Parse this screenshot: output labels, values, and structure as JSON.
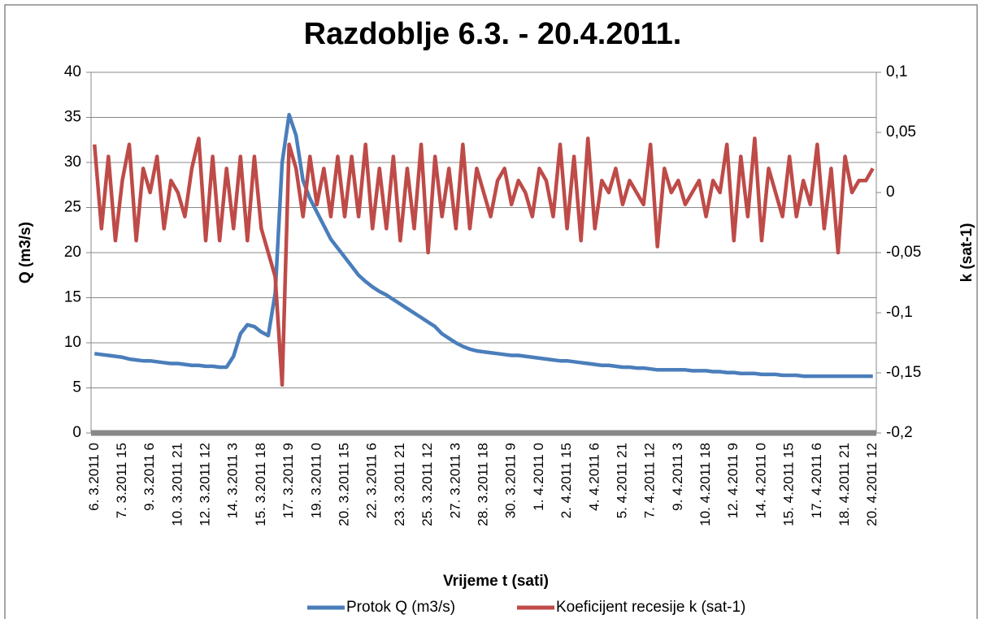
{
  "chart_data": {
    "type": "line",
    "title": "Razdoblje 6.3. - 20.4.2011.",
    "xlabel": "Vrijeme t (sati)",
    "ylabel": "Q (m3/s)",
    "y2label": "k (sat-1)",
    "categories": [
      "6. 3.2011 0",
      null,
      null,
      null,
      "7. 3.2011 15",
      null,
      null,
      null,
      "9. 3.2011 6",
      null,
      null,
      null,
      "10. 3.2011 21",
      null,
      null,
      null,
      "12. 3.2011 12",
      null,
      null,
      null,
      "14. 3.2011 3",
      null,
      null,
      null,
      "15. 3.2011 18",
      null,
      null,
      null,
      "17. 3.2011 9",
      null,
      null,
      null,
      "19. 3.2011 0",
      null,
      null,
      null,
      "20. 3.2011 15",
      null,
      null,
      null,
      "22. 3.2011 6",
      null,
      null,
      null,
      "23. 3.2011 21",
      null,
      null,
      null,
      "25. 3.2011 12",
      null,
      null,
      null,
      "27. 3.2011 3",
      null,
      null,
      null,
      "28. 3.2011 18",
      null,
      null,
      null,
      "30. 3.2011 9",
      null,
      null,
      null,
      "1. 4.2011 0",
      null,
      null,
      null,
      "2. 4.2011 15",
      null,
      null,
      null,
      "4. 4.2011 6",
      null,
      null,
      null,
      "5. 4.2011 21",
      null,
      null,
      null,
      "7. 4.2011 12",
      null,
      null,
      null,
      "9. 4.2011 3",
      null,
      null,
      null,
      "10. 4.2011 18",
      null,
      null,
      null,
      "12. 4.2011 9",
      null,
      null,
      null,
      "14. 4.2011 0",
      null,
      null,
      null,
      "15. 4.2011 15",
      null,
      null,
      null,
      "17. 4.2011 6",
      null,
      null,
      null,
      "18. 4.2011 21",
      null,
      null,
      null,
      "20. 4.2011 12"
    ],
    "series": [
      {
        "name": "Protok Q (m3/s)",
        "color": "#4a7ebb",
        "values": [
          8.8,
          8.7,
          8.6,
          8.5,
          8.4,
          8.2,
          8.1,
          8.0,
          8.0,
          7.9,
          7.8,
          7.7,
          7.7,
          7.6,
          7.5,
          7.5,
          7.4,
          7.4,
          7.3,
          7.3,
          8.5,
          11.0,
          12.0,
          11.8,
          11.2,
          10.8,
          15.5,
          30.0,
          35.3,
          33.0,
          28.0,
          26.0,
          24.5,
          23.0,
          21.5,
          20.5,
          19.5,
          18.5,
          17.5,
          16.8,
          16.2,
          15.7,
          15.3,
          14.8,
          14.3,
          13.8,
          13.3,
          12.8,
          12.3,
          11.8,
          11.0,
          10.5,
          10.0,
          9.6,
          9.3,
          9.1,
          9.0,
          8.9,
          8.8,
          8.7,
          8.6,
          8.6,
          8.5,
          8.4,
          8.3,
          8.2,
          8.1,
          8.0,
          8.0,
          7.9,
          7.8,
          7.7,
          7.6,
          7.5,
          7.5,
          7.4,
          7.3,
          7.3,
          7.2,
          7.2,
          7.1,
          7.0,
          7.0,
          7.0,
          7.0,
          7.0,
          6.9,
          6.9,
          6.9,
          6.8,
          6.8,
          6.7,
          6.7,
          6.6,
          6.6,
          6.6,
          6.5,
          6.5,
          6.5,
          6.4,
          6.4,
          6.4,
          6.3,
          6.3,
          6.3,
          6.3,
          6.3,
          6.3,
          6.3,
          6.3,
          6.3,
          6.3,
          6.3
        ]
      },
      {
        "name": "Koeficijent recesije k (sat-1)",
        "color": "#be4b48",
        "axis": "y2",
        "values": [
          0.04,
          -0.03,
          0.03,
          -0.04,
          0.01,
          0.04,
          -0.04,
          0.02,
          0.0,
          0.03,
          -0.03,
          0.01,
          0.0,
          -0.02,
          0.02,
          0.045,
          -0.04,
          0.03,
          -0.04,
          0.02,
          -0.03,
          0.03,
          -0.04,
          0.03,
          -0.03,
          -0.05,
          -0.07,
          -0.16,
          0.04,
          0.02,
          -0.02,
          0.03,
          -0.01,
          0.02,
          -0.02,
          0.03,
          -0.02,
          0.03,
          -0.02,
          0.04,
          -0.03,
          0.02,
          -0.03,
          0.03,
          -0.04,
          0.02,
          -0.03,
          0.04,
          -0.05,
          0.03,
          -0.02,
          0.02,
          -0.03,
          0.04,
          -0.03,
          0.02,
          0.0,
          -0.02,
          0.01,
          0.02,
          -0.01,
          0.01,
          0.0,
          -0.02,
          0.02,
          0.01,
          -0.02,
          0.04,
          -0.03,
          0.03,
          -0.04,
          0.045,
          -0.03,
          0.01,
          0.0,
          0.02,
          -0.01,
          0.01,
          0.0,
          -0.01,
          0.04,
          -0.045,
          0.02,
          0.0,
          0.01,
          -0.01,
          0.0,
          0.01,
          -0.02,
          0.01,
          0.0,
          0.04,
          -0.04,
          0.03,
          -0.02,
          0.045,
          -0.04,
          0.02,
          0.0,
          -0.02,
          0.03,
          -0.02,
          0.01,
          -0.01,
          0.04,
          -0.03,
          0.02,
          -0.05,
          0.03,
          0.0,
          0.01,
          0.01,
          0.02
        ]
      }
    ],
    "ylim": [
      0,
      40
    ],
    "yticks": [
      0,
      5,
      10,
      15,
      20,
      25,
      30,
      35,
      40
    ],
    "y2lim": [
      -0.2,
      0.1
    ],
    "y2ticks": [
      {
        "value": -0.2,
        "label": "-0,2"
      },
      {
        "value": -0.15,
        "label": "-0,15"
      },
      {
        "value": -0.1,
        "label": "-0,1"
      },
      {
        "value": -0.05,
        "label": "-0,05"
      },
      0,
      {
        "value": 0.05,
        "label": "0,05"
      },
      {
        "value": 0.1,
        "label": "0,1"
      }
    ],
    "grid": true,
    "legend": "bottom"
  }
}
